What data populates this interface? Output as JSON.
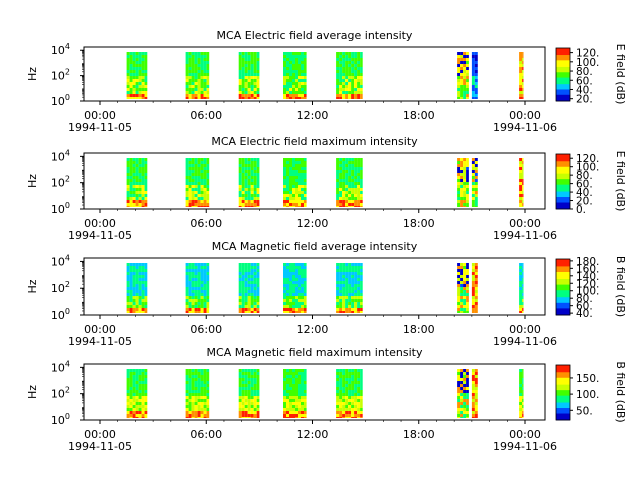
{
  "colors": {
    "colormap": [
      "#0000c8",
      "#0050ff",
      "#00c8ff",
      "#00ff80",
      "#40ff00",
      "#c8ff00",
      "#ffff00",
      "#ff9000",
      "#ff2000"
    ],
    "axes": "#000000",
    "background": "#ffffff"
  },
  "chart_data": [
    {
      "type": "heatmap",
      "title": "MCA  Electric field average intensity",
      "ylabel": "Hz",
      "yticks": [
        "10",
        "10",
        "10"
      ],
      "ytick_exponents": [
        "0",
        "2",
        "4"
      ],
      "ylim": [
        1,
        20000
      ],
      "yscale": "log",
      "xticks": [
        "00:00",
        "06:00",
        "12:00",
        "18:00",
        "00:00"
      ],
      "xdates": [
        "1994-11-05",
        "1994-11-06"
      ],
      "colorbar": {
        "label": "E field (dB)",
        "ticks": [
          "20.",
          "40.",
          "60.",
          "80.",
          "100.",
          "120."
        ],
        "range": [
          15,
          130
        ]
      },
      "intervals": [
        {
          "start": "01:30",
          "end": "02:40",
          "style": "e"
        },
        {
          "start": "04:50",
          "end": "06:10",
          "style": "e"
        },
        {
          "start": "07:50",
          "end": "09:00",
          "style": "e"
        },
        {
          "start": "10:20",
          "end": "11:40",
          "style": "e"
        },
        {
          "start": "13:20",
          "end": "14:50",
          "style": "e"
        },
        {
          "start": "20:10",
          "end": "20:50",
          "style": "mix"
        },
        {
          "start": "21:00",
          "end": "21:20",
          "style": "blue"
        },
        {
          "start": "23:40",
          "end": "23:55",
          "style": "warm"
        }
      ]
    },
    {
      "type": "heatmap",
      "title": "MCA  Electric field maximum intensity",
      "ylabel": "Hz",
      "yticks": [
        "10",
        "10",
        "10"
      ],
      "ytick_exponents": [
        "0",
        "2",
        "4"
      ],
      "ylim": [
        1,
        20000
      ],
      "yscale": "log",
      "xticks": [
        "00:00",
        "06:00",
        "12:00",
        "18:00",
        "00:00"
      ],
      "xdates": [
        "1994-11-05",
        "1994-11-06"
      ],
      "colorbar": {
        "label": "E field (dB)",
        "ticks": [
          "0.",
          "20.",
          "40.",
          "60.",
          "80.",
          "100.",
          "120."
        ],
        "range": [
          0,
          130
        ]
      },
      "intervals": [
        {
          "start": "01:30",
          "end": "02:40",
          "style": "e"
        },
        {
          "start": "04:50",
          "end": "06:10",
          "style": "e"
        },
        {
          "start": "07:50",
          "end": "09:00",
          "style": "e"
        },
        {
          "start": "10:20",
          "end": "11:40",
          "style": "e"
        },
        {
          "start": "13:20",
          "end": "14:50",
          "style": "e"
        },
        {
          "start": "20:10",
          "end": "20:50",
          "style": "mix"
        },
        {
          "start": "21:00",
          "end": "21:20",
          "style": "mix"
        },
        {
          "start": "23:40",
          "end": "23:55",
          "style": "warm"
        }
      ]
    },
    {
      "type": "heatmap",
      "title": "MCA  Magnetic field average intensity",
      "ylabel": "Hz",
      "yticks": [
        "10",
        "10",
        "10"
      ],
      "ytick_exponents": [
        "0",
        "2",
        "4"
      ],
      "ylim": [
        1,
        20000
      ],
      "yscale": "log",
      "xticks": [
        "00:00",
        "06:00",
        "12:00",
        "18:00",
        "00:00"
      ],
      "xdates": [
        "1994-11-05",
        "1994-11-06"
      ],
      "colorbar": {
        "label": "B field (dB)",
        "ticks": [
          "40.",
          "60.",
          "80.",
          "100.",
          "120.",
          "140.",
          "160.",
          "180."
        ],
        "range": [
          35,
          185
        ]
      },
      "intervals": [
        {
          "start": "01:30",
          "end": "02:40",
          "style": "b"
        },
        {
          "start": "04:50",
          "end": "06:10",
          "style": "b"
        },
        {
          "start": "07:50",
          "end": "09:00",
          "style": "b"
        },
        {
          "start": "10:20",
          "end": "11:40",
          "style": "b"
        },
        {
          "start": "13:20",
          "end": "14:50",
          "style": "b"
        },
        {
          "start": "20:10",
          "end": "20:50",
          "style": "mix"
        },
        {
          "start": "21:00",
          "end": "21:20",
          "style": "warm"
        },
        {
          "start": "23:40",
          "end": "23:55",
          "style": "b"
        }
      ]
    },
    {
      "type": "heatmap",
      "title": "MCA  Magnetic field maximum intensity",
      "ylabel": "Hz",
      "yticks": [
        "10",
        "10",
        "10"
      ],
      "ytick_exponents": [
        "0",
        "2",
        "4"
      ],
      "ylim": [
        1,
        20000
      ],
      "yscale": "log",
      "xticks": [
        "00:00",
        "06:00",
        "12:00",
        "18:00",
        "00:00"
      ],
      "xdates": [
        "1994-11-05",
        "1994-11-06"
      ],
      "colorbar": {
        "label": "B field (dB)",
        "ticks": [
          "50.",
          "100.",
          "150."
        ],
        "range": [
          20,
          190
        ]
      },
      "intervals": [
        {
          "start": "01:30",
          "end": "02:40",
          "style": "bmax"
        },
        {
          "start": "04:50",
          "end": "06:10",
          "style": "bmax"
        },
        {
          "start": "07:50",
          "end": "09:00",
          "style": "bmax"
        },
        {
          "start": "10:20",
          "end": "11:40",
          "style": "bmax"
        },
        {
          "start": "13:20",
          "end": "14:50",
          "style": "bmax"
        },
        {
          "start": "20:10",
          "end": "20:50",
          "style": "mix"
        },
        {
          "start": "21:00",
          "end": "21:20",
          "style": "warm"
        },
        {
          "start": "23:40",
          "end": "23:55",
          "style": "bmax"
        }
      ]
    }
  ]
}
